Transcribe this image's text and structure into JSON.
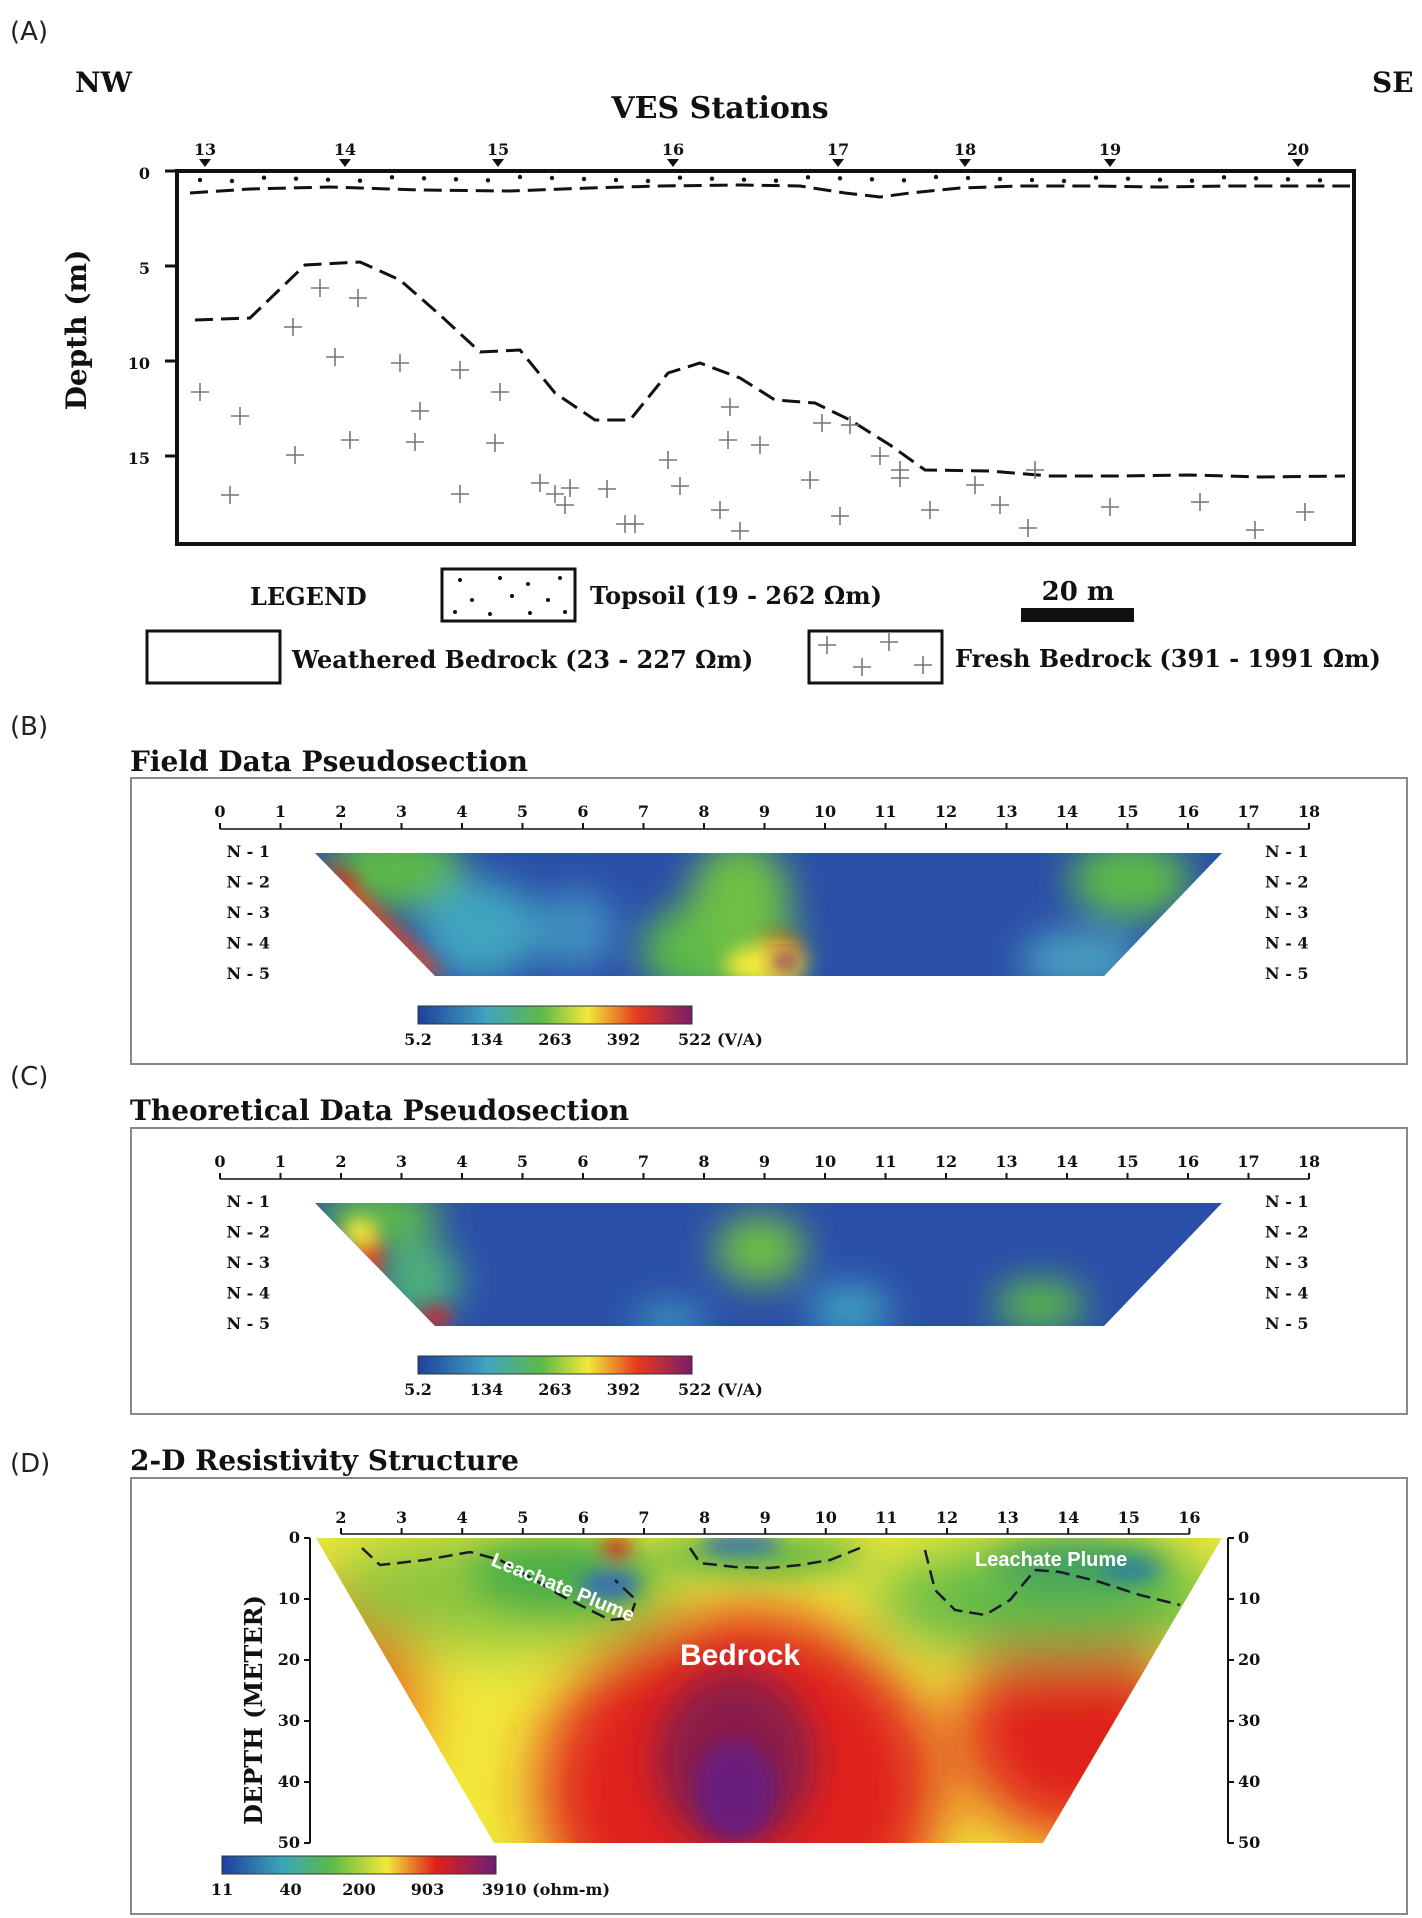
{
  "panel_a": {
    "label": "(A)",
    "nw": "NW",
    "se": "SE",
    "title": "VES Stations",
    "ylabel": "Depth (m)",
    "stations": [
      "13",
      "14",
      "15",
      "16",
      "17",
      "18",
      "19",
      "20"
    ],
    "depth_ticks": [
      "0",
      "5",
      "10",
      "15"
    ],
    "legend": {
      "title": "LEGEND",
      "topsoil": "Topsoil (19 - 262 Ωm)",
      "weathered": "Weathered Bedrock (23 - 227 Ωm)",
      "fresh": "Fresh Bedrock (391 - 1991 Ωm)",
      "scale": "20 m"
    }
  },
  "panel_b": {
    "label": "(B)",
    "title": "Field Data Pseudosection",
    "x_ticks": [
      "0",
      "1",
      "2",
      "3",
      "4",
      "5",
      "6",
      "7",
      "8",
      "9",
      "10",
      "11",
      "12",
      "13",
      "14",
      "15",
      "16",
      "17",
      "18"
    ],
    "n_levels": [
      "N - 1",
      "N - 2",
      "N - 3",
      "N - 4",
      "N - 5"
    ],
    "colorbar": [
      "5.2",
      "134",
      "263",
      "392",
      "522 (V/A)"
    ]
  },
  "panel_c": {
    "label": "(C)",
    "title": "Theoretical Data Pseudosection",
    "x_ticks": [
      "0",
      "1",
      "2",
      "3",
      "4",
      "5",
      "6",
      "7",
      "8",
      "9",
      "10",
      "11",
      "12",
      "13",
      "14",
      "15",
      "16",
      "17",
      "18"
    ],
    "n_levels": [
      "N - 1",
      "N - 2",
      "N - 3",
      "N - 4",
      "N - 5"
    ],
    "colorbar": [
      "5.2",
      "134",
      "263",
      "392",
      "522 (V/A)"
    ]
  },
  "panel_d": {
    "label": "(D)",
    "title": "2-D Resistivity Structure",
    "ylabel": "DEPTH (METER)",
    "x_ticks": [
      "2",
      "3",
      "4",
      "5",
      "6",
      "7",
      "8",
      "9",
      "10",
      "11",
      "12",
      "13",
      "14",
      "15",
      "16"
    ],
    "depth_ticks": [
      "0",
      "10",
      "20",
      "30",
      "40",
      "50"
    ],
    "annotations": {
      "plume_left": "Leachate Plume",
      "plume_right": "Leachate Plume",
      "bedrock": "Bedrock"
    },
    "colorbar": [
      "11",
      "40",
      "200",
      "903",
      "3910 (ohm-m)"
    ]
  },
  "colors": {
    "blue": "#1f3f9e",
    "green": "#4cb04a",
    "yellow": "#f2e83a",
    "red": "#e0201a",
    "purple": "#6a1f7a"
  }
}
